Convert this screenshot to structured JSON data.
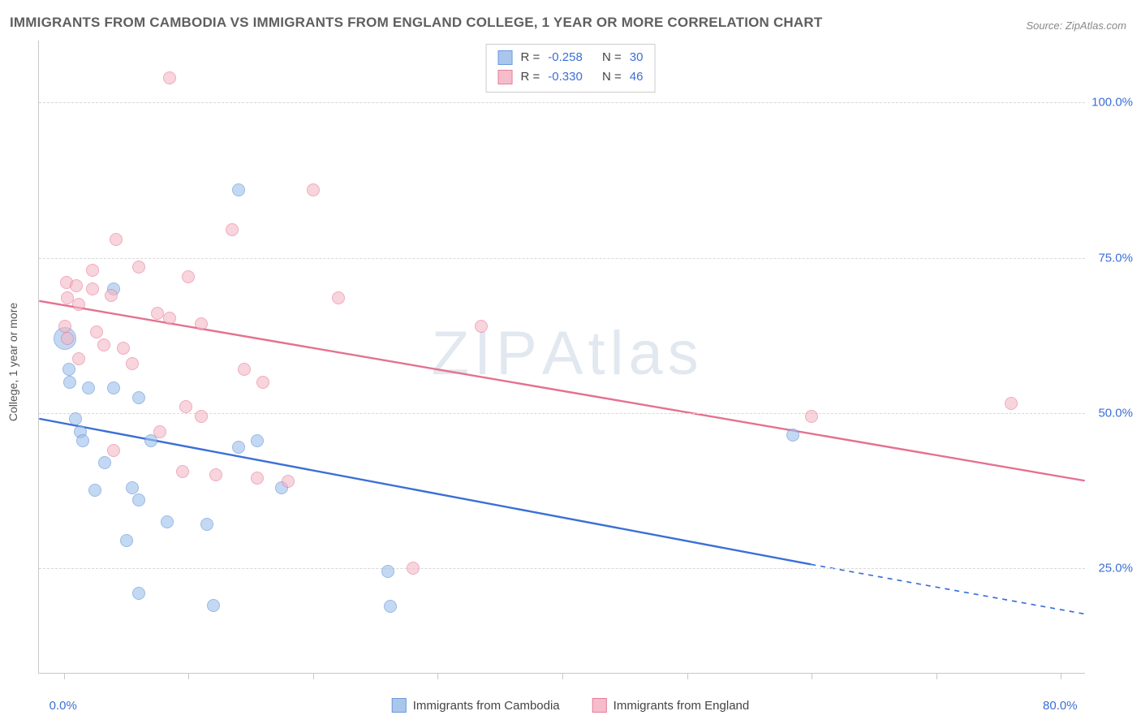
{
  "title": "IMMIGRANTS FROM CAMBODIA VS IMMIGRANTS FROM ENGLAND COLLEGE, 1 YEAR OR MORE CORRELATION CHART",
  "source_prefix": "Source: ",
  "source_name": "ZipAtlas.com",
  "watermark": "ZIPAtlas",
  "y_axis_label": "College, 1 year or more",
  "chart": {
    "type": "scatter",
    "background_color": "#ffffff",
    "grid_color": "#d8d8d8",
    "axis_color": "#c8c8c8",
    "x_range": [
      -2,
      82
    ],
    "y_range": [
      8,
      110
    ],
    "x_ticks_minor": [
      0,
      10,
      20,
      30,
      40,
      50,
      60,
      70,
      80
    ],
    "x_tick_labels": [
      {
        "value": 0,
        "label": "0.0%"
      },
      {
        "value": 80,
        "label": "80.0%"
      }
    ],
    "y_grid": [
      25,
      50,
      75,
      100
    ],
    "y_tick_labels": [
      {
        "value": 25,
        "label": "25.0%"
      },
      {
        "value": 50,
        "label": "50.0%"
      },
      {
        "value": 75,
        "label": "75.0%"
      },
      {
        "value": 100,
        "label": "100.0%"
      }
    ],
    "point_radius": 8,
    "series": [
      {
        "id": "cambodia",
        "label": "Immigrants from Cambodia",
        "fill_color": "#a0c2ec",
        "fill_opacity": 0.62,
        "stroke_color": "#5f8fd6",
        "stroke_width": 1.3,
        "r_label": "R =",
        "r_value": "-0.258",
        "n_label": "N =",
        "n_value": "30",
        "trend": {
          "x1": -2,
          "y1": 49,
          "x2": 60,
          "y2": 25.5,
          "x2_dash": 82,
          "y2_dash": 17.5,
          "color": "#3b6fd6",
          "width": 2.4
        },
        "points": [
          {
            "x": 0.1,
            "y": 62,
            "r": 14
          },
          {
            "x": 0.4,
            "y": 57
          },
          {
            "x": 0.5,
            "y": 55
          },
          {
            "x": 4,
            "y": 70
          },
          {
            "x": 14,
            "y": 86
          },
          {
            "x": 0.9,
            "y": 49
          },
          {
            "x": 1.3,
            "y": 47
          },
          {
            "x": 1.5,
            "y": 45.5
          },
          {
            "x": 2,
            "y": 54
          },
          {
            "x": 4,
            "y": 54
          },
          {
            "x": 6,
            "y": 52.5
          },
          {
            "x": 7,
            "y": 45.5
          },
          {
            "x": 15.5,
            "y": 45.5
          },
          {
            "x": 3.3,
            "y": 42
          },
          {
            "x": 5.5,
            "y": 38
          },
          {
            "x": 2.5,
            "y": 37.5
          },
          {
            "x": 6,
            "y": 36
          },
          {
            "x": 14,
            "y": 44.5
          },
          {
            "x": 17.5,
            "y": 38
          },
          {
            "x": 8.3,
            "y": 32.5
          },
          {
            "x": 11.5,
            "y": 32
          },
          {
            "x": 5,
            "y": 29.5
          },
          {
            "x": 26,
            "y": 24.5
          },
          {
            "x": 6,
            "y": 21
          },
          {
            "x": 12,
            "y": 19
          },
          {
            "x": 26.2,
            "y": 18.8
          },
          {
            "x": 58.5,
            "y": 46.5
          }
        ]
      },
      {
        "id": "england",
        "label": "Immigrants from England",
        "fill_color": "#f4b6c6",
        "fill_opacity": 0.58,
        "stroke_color": "#e4718f",
        "stroke_width": 1.3,
        "r_label": "R =",
        "r_value": "-0.330",
        "n_label": "N =",
        "n_value": "46",
        "trend": {
          "x1": -2,
          "y1": 68,
          "x2": 82,
          "y2": 39,
          "color": "#e4718f",
          "width": 2.4
        },
        "points": [
          {
            "x": 8.5,
            "y": 104
          },
          {
            "x": 20,
            "y": 86
          },
          {
            "x": 13.5,
            "y": 79.5
          },
          {
            "x": 4.2,
            "y": 78
          },
          {
            "x": 6,
            "y": 73.5
          },
          {
            "x": 2.3,
            "y": 73
          },
          {
            "x": 10,
            "y": 72
          },
          {
            "x": 0.2,
            "y": 71
          },
          {
            "x": 1,
            "y": 70.5
          },
          {
            "x": 2.3,
            "y": 70
          },
          {
            "x": 3.8,
            "y": 69
          },
          {
            "x": 0.3,
            "y": 68.5
          },
          {
            "x": 22,
            "y": 68.5
          },
          {
            "x": 1.2,
            "y": 67.5
          },
          {
            "x": 7.5,
            "y": 66
          },
          {
            "x": 0.1,
            "y": 64
          },
          {
            "x": 8.5,
            "y": 65.3
          },
          {
            "x": 11,
            "y": 64.3
          },
          {
            "x": 2.6,
            "y": 63
          },
          {
            "x": 0.3,
            "y": 62
          },
          {
            "x": 3.2,
            "y": 61
          },
          {
            "x": 4.8,
            "y": 60.5
          },
          {
            "x": 1.2,
            "y": 58.7
          },
          {
            "x": 5.5,
            "y": 58
          },
          {
            "x": 14.5,
            "y": 57
          },
          {
            "x": 33.5,
            "y": 64
          },
          {
            "x": 16,
            "y": 55
          },
          {
            "x": 9.8,
            "y": 51
          },
          {
            "x": 11,
            "y": 49.5
          },
          {
            "x": 7.7,
            "y": 47
          },
          {
            "x": 4,
            "y": 44
          },
          {
            "x": 9.5,
            "y": 40.5
          },
          {
            "x": 12.2,
            "y": 40
          },
          {
            "x": 15.5,
            "y": 39.5
          },
          {
            "x": 18,
            "y": 39
          },
          {
            "x": 28,
            "y": 25
          },
          {
            "x": 60,
            "y": 49.5
          },
          {
            "x": 76,
            "y": 51.5
          }
        ]
      }
    ]
  }
}
